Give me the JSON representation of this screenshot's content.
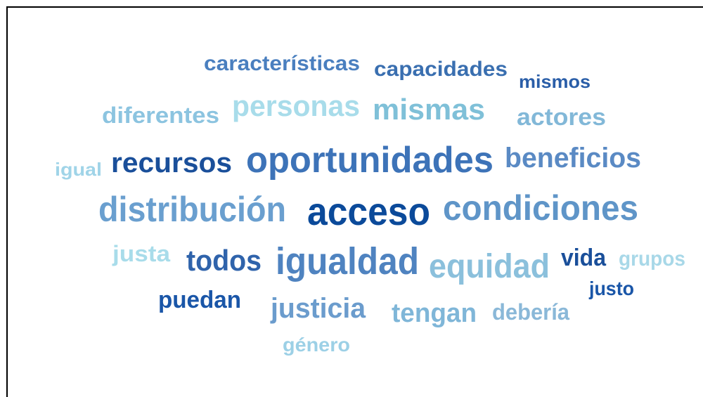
{
  "words": [
    "características",
    "capacidades",
    "mismos",
    "diferentes",
    "personas",
    "mismas",
    "actores",
    "igual",
    "recursos",
    "oportunidades",
    "beneficios",
    "distribución",
    "acceso",
    "condiciones",
    "justa",
    "todos",
    "igualdad",
    "equidad",
    "vida",
    "grupos",
    "justo",
    "puedan",
    "justicia",
    "tengan",
    "debería",
    "género"
  ]
}
